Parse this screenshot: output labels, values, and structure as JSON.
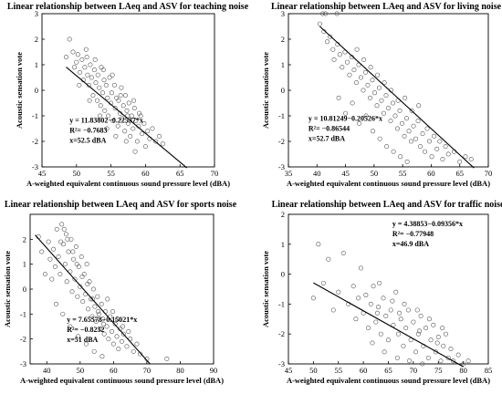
{
  "chart_data": [
    {
      "type": "scatter",
      "title": "Linear relationship between LAeq and ASV for teaching noise",
      "xlabel": "A-weighted equivalent continuous sound pressure level (dBA)",
      "ylabel": "Acoustic sensation vote",
      "xlim": [
        45,
        70
      ],
      "ylim": [
        -3,
        3
      ],
      "xticks": [
        45,
        50,
        55,
        60,
        65,
        70
      ],
      "yticks": [
        -3,
        -2,
        -1,
        0,
        1,
        2,
        3
      ],
      "fit": {
        "intercept": 11.83802,
        "slope": -0.22537,
        "x_start": 48.5,
        "x_end": 66.0
      },
      "annotation": [
        "y = 11.83802−0.22537*x",
        "R²= −0.7683",
        "x=52.5 dBA"
      ],
      "points": [
        [
          48.5,
          1.3
        ],
        [
          49.0,
          2.0
        ],
        [
          49.5,
          1.5
        ],
        [
          49.7,
          0.9
        ],
        [
          50.0,
          1.1
        ],
        [
          50.2,
          1.4
        ],
        [
          50.5,
          0.7
        ],
        [
          50.8,
          1.2
        ],
        [
          51.0,
          0.4
        ],
        [
          51.2,
          0.9
        ],
        [
          51.5,
          1.3
        ],
        [
          51.6,
          0.6
        ],
        [
          51.8,
          0.2
        ],
        [
          52.0,
          1.0
        ],
        [
          52.2,
          0.5
        ],
        [
          52.4,
          -0.2
        ],
        [
          52.6,
          0.8
        ],
        [
          52.8,
          0.3
        ],
        [
          53.0,
          -0.4
        ],
        [
          53.1,
          0.6
        ],
        [
          53.3,
          0.1
        ],
        [
          53.5,
          -0.6
        ],
        [
          53.6,
          0.9
        ],
        [
          53.8,
          -0.1
        ],
        [
          54.0,
          0.4
        ],
        [
          54.1,
          -0.8
        ],
        [
          54.3,
          0.2
        ],
        [
          54.5,
          -0.3
        ],
        [
          54.6,
          -1.0
        ],
        [
          54.8,
          0.5
        ],
        [
          55.0,
          -0.5
        ],
        [
          55.1,
          -0.1
        ],
        [
          55.3,
          -1.2
        ],
        [
          55.5,
          0.2
        ],
        [
          55.6,
          -0.7
        ],
        [
          55.8,
          -0.3
        ],
        [
          56.0,
          -1.4
        ],
        [
          56.1,
          -0.4
        ],
        [
          56.3,
          -0.9
        ],
        [
          56.5,
          0.1
        ],
        [
          56.6,
          -1.1
        ],
        [
          56.8,
          -0.6
        ],
        [
          57.0,
          -1.6
        ],
        [
          57.1,
          -0.2
        ],
        [
          57.3,
          -0.8
        ],
        [
          57.5,
          -1.3
        ],
        [
          57.6,
          -0.5
        ],
        [
          57.8,
          -1.8
        ],
        [
          58.0,
          -1.0
        ],
        [
          58.2,
          -1.5
        ],
        [
          58.4,
          -0.7
        ],
        [
          58.6,
          -1.2
        ],
        [
          58.8,
          -2.0
        ],
        [
          59.0,
          -1.4
        ],
        [
          59.3,
          -1.0
        ],
        [
          59.5,
          -1.7
        ],
        [
          59.8,
          -1.3
        ],
        [
          60.0,
          -2.2
        ],
        [
          60.3,
          -1.6
        ],
        [
          60.6,
          -1.9
        ],
        [
          61.0,
          -1.5
        ],
        [
          61.5,
          -2.0
        ],
        [
          62.0,
          -1.8
        ],
        [
          62.5,
          -2.1
        ],
        [
          51.4,
          1.6
        ],
        [
          52.7,
          1.2
        ],
        [
          53.9,
          0.8
        ],
        [
          55.2,
          0.6
        ],
        [
          56.4,
          -0.2
        ],
        [
          57.4,
          -1.0
        ],
        [
          58.3,
          -0.4
        ],
        [
          59.1,
          -0.9
        ],
        [
          50.4,
          0.2
        ],
        [
          51.9,
          -0.4
        ],
        [
          53.4,
          -1.0
        ],
        [
          54.4,
          -1.5
        ],
        [
          55.7,
          -1.8
        ],
        [
          57.2,
          -2.0
        ],
        [
          58.5,
          -2.4
        ]
      ]
    },
    {
      "type": "scatter",
      "title": "Linear relationship between LAeq and ASV for living noise",
      "xlabel": "A-weighted equivalent continuous sound pressure level (dBA)",
      "ylabel": "Acoustic sensation vote",
      "xlim": [
        35,
        70
      ],
      "ylim": [
        -3,
        3
      ],
      "xticks": [
        35,
        40,
        45,
        50,
        55,
        60,
        65,
        70
      ],
      "yticks": [
        -3,
        -2,
        -1,
        0,
        1,
        2,
        3
      ],
      "fit": {
        "intercept": 10.81249,
        "slope": -0.20526,
        "x_start": 40.5,
        "x_end": 67.5
      },
      "annotation": [
        "y = 10.81249−0.20526*x",
        "R²= −0.86544",
        "x=52.7 dBA"
      ],
      "points": [
        [
          41.0,
          3.0
        ],
        [
          41.5,
          3.0
        ],
        [
          43.5,
          3.0
        ],
        [
          40.5,
          2.6
        ],
        [
          41.2,
          2.3
        ],
        [
          41.8,
          1.9
        ],
        [
          42.3,
          2.1
        ],
        [
          42.8,
          1.6
        ],
        [
          43.0,
          1.2
        ],
        [
          43.6,
          1.8
        ],
        [
          44.0,
          1.4
        ],
        [
          44.4,
          0.9
        ],
        [
          44.9,
          1.5
        ],
        [
          45.3,
          1.1
        ],
        [
          45.7,
          0.6
        ],
        [
          46.1,
          1.3
        ],
        [
          46.5,
          0.8
        ],
        [
          46.9,
          0.3
        ],
        [
          47.3,
          1.0
        ],
        [
          47.7,
          0.5
        ],
        [
          48.1,
          0.0
        ],
        [
          48.5,
          0.7
        ],
        [
          48.9,
          0.2
        ],
        [
          49.3,
          -0.3
        ],
        [
          49.7,
          0.4
        ],
        [
          50.1,
          -0.1
        ],
        [
          50.5,
          -0.6
        ],
        [
          50.9,
          0.1
        ],
        [
          51.3,
          -0.4
        ],
        [
          51.7,
          -0.9
        ],
        [
          52.1,
          -0.2
        ],
        [
          52.5,
          -0.7
        ],
        [
          52.9,
          -1.2
        ],
        [
          53.3,
          -0.5
        ],
        [
          53.7,
          -1.0
        ],
        [
          54.1,
          -1.5
        ],
        [
          54.5,
          -0.8
        ],
        [
          54.9,
          -1.3
        ],
        [
          55.3,
          -1.8
        ],
        [
          55.7,
          -1.1
        ],
        [
          56.1,
          -1.6
        ],
        [
          56.5,
          -2.0
        ],
        [
          56.9,
          -1.4
        ],
        [
          57.3,
          -1.9
        ],
        [
          57.7,
          -1.2
        ],
        [
          58.1,
          -2.2
        ],
        [
          58.5,
          -1.7
        ],
        [
          58.9,
          -2.4
        ],
        [
          59.3,
          -1.5
        ],
        [
          59.7,
          -2.0
        ],
        [
          60.1,
          -2.6
        ],
        [
          60.5,
          -1.8
        ],
        [
          61.0,
          -2.3
        ],
        [
          61.5,
          -2.0
        ],
        [
          62.0,
          -2.7
        ],
        [
          62.5,
          -2.2
        ],
        [
          63.0,
          -2.5
        ],
        [
          64.0,
          -2.4
        ],
        [
          65.0,
          -2.8
        ],
        [
          66.0,
          -2.6
        ],
        [
          67.0,
          -2.7
        ],
        [
          47.0,
          1.6
        ],
        [
          48.2,
          1.2
        ],
        [
          49.4,
          0.9
        ],
        [
          50.6,
          0.6
        ],
        [
          51.8,
          0.3
        ],
        [
          53.0,
          0.0
        ],
        [
          54.2,
          -0.4
        ],
        [
          55.4,
          -0.3
        ],
        [
          56.6,
          -0.8
        ],
        [
          57.8,
          -0.6
        ],
        [
          43.8,
          -0.3
        ],
        [
          45.0,
          -0.9
        ],
        [
          46.2,
          -0.5
        ],
        [
          47.4,
          -1.3
        ],
        [
          48.6,
          -1.0
        ],
        [
          49.8,
          -1.6
        ],
        [
          51.0,
          -1.9
        ],
        [
          52.2,
          -2.2
        ],
        [
          53.4,
          -2.4
        ],
        [
          54.6,
          -2.6
        ],
        [
          55.8,
          -2.8
        ]
      ]
    },
    {
      "type": "scatter",
      "title": "Linear relationship between LAeq and ASV for sports noise",
      "xlabel": "A-weighted equivalent continuous sound pressure level (dBA)",
      "ylabel": "Acoustic sensation vote",
      "xlim": [
        35,
        90
      ],
      "ylim": [
        -3,
        3
      ],
      "xticks": [
        40,
        50,
        60,
        70,
        80,
        90
      ],
      "yticks": [
        -3,
        -2,
        -1,
        0,
        1,
        2
      ],
      "fit": {
        "intercept": 7.65578,
        "slope": -0.15021,
        "x_start": 36.5,
        "x_end": 71.0
      },
      "annotation": [
        "y = 7.65578−0.15021*x",
        "R²= −0.8232",
        "x=51 dBA"
      ],
      "points": [
        [
          37.5,
          2.1
        ],
        [
          38.5,
          1.5
        ],
        [
          39.5,
          0.6
        ],
        [
          40.5,
          1.9
        ],
        [
          41.0,
          1.2
        ],
        [
          41.5,
          0.4
        ],
        [
          42.0,
          1.6
        ],
        [
          42.5,
          0.9
        ],
        [
          43.0,
          2.4
        ],
        [
          43.5,
          1.3
        ],
        [
          44.0,
          0.6
        ],
        [
          44.5,
          2.6
        ],
        [
          45.0,
          1.8
        ],
        [
          45.5,
          1.0
        ],
        [
          45.8,
          2.2
        ],
        [
          46.0,
          0.3
        ],
        [
          46.5,
          1.5
        ],
        [
          47.0,
          0.7
        ],
        [
          47.3,
          2.0
        ],
        [
          47.6,
          -0.1
        ],
        [
          48.0,
          1.2
        ],
        [
          48.4,
          0.4
        ],
        [
          48.8,
          1.7
        ],
        [
          49.2,
          -0.3
        ],
        [
          49.6,
          0.9
        ],
        [
          50.0,
          0.1
        ],
        [
          50.4,
          1.3
        ],
        [
          50.8,
          -0.5
        ],
        [
          51.2,
          0.6
        ],
        [
          51.6,
          -0.2
        ],
        [
          52.0,
          1.0
        ],
        [
          52.4,
          -0.8
        ],
        [
          52.8,
          0.3
        ],
        [
          53.2,
          -0.4
        ],
        [
          53.6,
          -1.1
        ],
        [
          54.0,
          0.0
        ],
        [
          54.4,
          -0.7
        ],
        [
          54.8,
          -1.3
        ],
        [
          55.2,
          -0.3
        ],
        [
          55.6,
          -1.0
        ],
        [
          56.0,
          -1.6
        ],
        [
          56.4,
          -0.6
        ],
        [
          56.8,
          -1.2
        ],
        [
          57.2,
          -1.8
        ],
        [
          57.6,
          -0.9
        ],
        [
          58.0,
          -1.5
        ],
        [
          58.5,
          -2.0
        ],
        [
          59.0,
          -1.1
        ],
        [
          59.5,
          -1.7
        ],
        [
          60.0,
          -2.2
        ],
        [
          60.5,
          -1.4
        ],
        [
          61.0,
          -1.9
        ],
        [
          61.5,
          -2.4
        ],
        [
          62.0,
          -1.6
        ],
        [
          62.5,
          -2.1
        ],
        [
          63.0,
          -1.8
        ],
        [
          64.0,
          -2.3
        ],
        [
          65.0,
          -2.0
        ],
        [
          66.0,
          -2.5
        ],
        [
          67.0,
          -2.2
        ],
        [
          68.0,
          -2.6
        ],
        [
          70.0,
          -2.8
        ],
        [
          76.0,
          -2.8
        ],
        [
          44.2,
          1.9
        ],
        [
          45.2,
          2.4
        ],
        [
          46.2,
          2.0
        ],
        [
          47.8,
          1.5
        ],
        [
          49.0,
          1.0
        ],
        [
          50.6,
          0.5
        ],
        [
          52.2,
          0.2
        ],
        [
          53.8,
          -0.4
        ],
        [
          55.4,
          -0.9
        ],
        [
          57.0,
          -1.4
        ],
        [
          58.2,
          -0.4
        ],
        [
          59.8,
          -0.9
        ],
        [
          61.2,
          -1.2
        ],
        [
          62.8,
          -1.5
        ],
        [
          64.5,
          -1.7
        ],
        [
          42.8,
          -0.6
        ],
        [
          44.8,
          -1.0
        ],
        [
          47.0,
          -1.5
        ],
        [
          49.4,
          -1.9
        ],
        [
          51.8,
          -2.2
        ],
        [
          54.2,
          -2.5
        ],
        [
          56.6,
          -2.7
        ]
      ]
    },
    {
      "type": "scatter",
      "title": "Linear relationship between LAeq and ASV for traffic noise",
      "xlabel": "A-weighted equivalent continuous sound pressure level (dBA)",
      "ylabel": "Acoustic sensation vote",
      "xlim": [
        45,
        85
      ],
      "ylim": [
        -3,
        2
      ],
      "xticks": [
        45,
        50,
        55,
        60,
        65,
        70,
        75,
        80,
        85
      ],
      "yticks": [
        -3,
        -2,
        -1,
        0,
        1,
        2
      ],
      "fit": {
        "intercept": 4.38853,
        "slope": -0.09356,
        "x_start": 50.0,
        "x_end": 80.0
      },
      "annotation": [
        "y = 4.38853−0.09356*x",
        "R²= −0.77948",
        "x=46.9 dBA"
      ],
      "points": [
        [
          50.0,
          -0.8
        ],
        [
          51.0,
          1.0
        ],
        [
          52.0,
          -0.3
        ],
        [
          53.0,
          0.5
        ],
        [
          54.0,
          -1.2
        ],
        [
          55.0,
          -0.6
        ],
        [
          56.0,
          0.7
        ],
        [
          57.0,
          -1.0
        ],
        [
          58.0,
          -0.4
        ],
        [
          58.5,
          -1.5
        ],
        [
          59.0,
          -0.8
        ],
        [
          59.5,
          0.2
        ],
        [
          60.0,
          -1.3
        ],
        [
          60.5,
          -0.7
        ],
        [
          61.0,
          -1.8
        ],
        [
          61.5,
          -1.0
        ],
        [
          62.0,
          -0.4
        ],
        [
          62.5,
          -1.6
        ],
        [
          63.0,
          -1.1
        ],
        [
          63.5,
          -2.0
        ],
        [
          64.0,
          -0.8
        ],
        [
          64.5,
          -1.4
        ],
        [
          65.0,
          -2.2
        ],
        [
          65.5,
          -1.2
        ],
        [
          66.0,
          -1.7
        ],
        [
          66.5,
          -0.6
        ],
        [
          67.0,
          -2.0
        ],
        [
          67.5,
          -1.5
        ],
        [
          68.0,
          -2.4
        ],
        [
          68.5,
          -1.8
        ],
        [
          69.0,
          -1.2
        ],
        [
          69.5,
          -2.2
        ],
        [
          70.0,
          -1.6
        ],
        [
          70.5,
          -2.6
        ],
        [
          71.0,
          -2.0
        ],
        [
          71.5,
          -1.4
        ],
        [
          72.0,
          -2.4
        ],
        [
          72.5,
          -1.8
        ],
        [
          73.0,
          -2.8
        ],
        [
          73.5,
          -2.2
        ],
        [
          74.0,
          -1.7
        ],
        [
          74.5,
          -2.6
        ],
        [
          75.0,
          -2.1
        ],
        [
          75.5,
          -2.9
        ],
        [
          76.0,
          -2.4
        ],
        [
          76.5,
          -2.0
        ],
        [
          77.0,
          -2.8
        ],
        [
          77.5,
          -2.5
        ],
        [
          78.0,
          -2.9
        ],
        [
          79.0,
          -2.7
        ],
        [
          80.0,
          -3.0
        ],
        [
          81.0,
          -2.9
        ],
        [
          63.2,
          -0.3
        ],
        [
          65.8,
          -0.9
        ],
        [
          68.2,
          -1.0
        ],
        [
          70.8,
          -1.2
        ],
        [
          73.2,
          -1.5
        ],
        [
          75.8,
          -1.8
        ],
        [
          61.8,
          -2.3
        ],
        [
          64.2,
          -2.6
        ],
        [
          66.8,
          -2.8
        ],
        [
          69.2,
          -2.9
        ],
        [
          71.8,
          -3.0
        ],
        [
          62.8,
          -1.3
        ],
        [
          67.2,
          -1.3
        ],
        [
          71.2,
          -1.9
        ],
        [
          74.8,
          -2.3
        ]
      ]
    }
  ]
}
